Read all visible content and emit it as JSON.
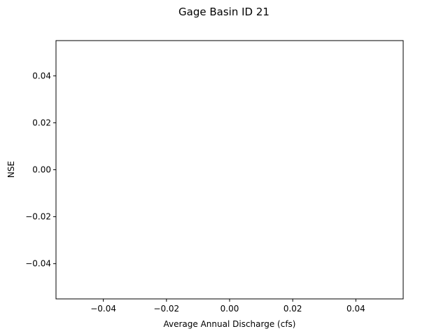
{
  "chart_data": {
    "type": "scatter",
    "title": "Gage Basin ID 21",
    "xlabel": "Average Annual Discharge (cfs)",
    "ylabel": "NSE",
    "xlim": [
      -0.055,
      0.055
    ],
    "ylim": [
      -0.055,
      0.055
    ],
    "x_ticks": [
      -0.04,
      -0.02,
      0.0,
      0.02,
      0.04
    ],
    "x_tick_labels": [
      "−0.04",
      "−0.02",
      "0.00",
      "0.02",
      "0.04"
    ],
    "y_ticks": [
      -0.04,
      -0.02,
      0.0,
      0.02,
      0.04
    ],
    "y_tick_labels": [
      "−0.04",
      "−0.02",
      "0.00",
      "0.02",
      "0.04"
    ],
    "series": [
      {
        "x": [],
        "y": []
      }
    ],
    "grid": false,
    "legend": false,
    "colors": {
      "axes": "#000000",
      "background": "#ffffff"
    }
  }
}
